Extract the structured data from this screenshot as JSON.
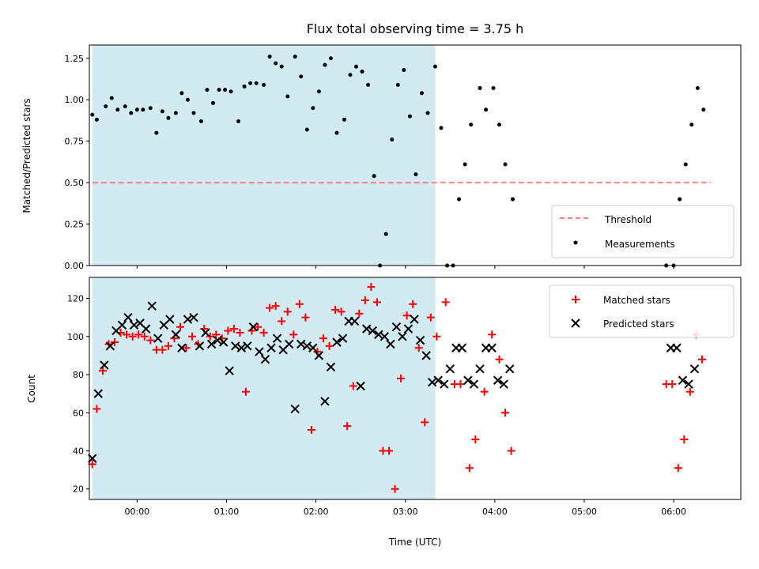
{
  "colors": {
    "shade": "#add8e6",
    "threshold": "#ff7f7f",
    "measurement": "#000000",
    "matched": "#ff0000",
    "predicted": "#000000"
  },
  "chart_data": [
    {
      "type": "scatter",
      "title": "Flux total observing time = 3.75 h",
      "xlabel": "",
      "ylabel": "Matched/Predicted stars",
      "ylim": [
        0,
        1.33
      ],
      "xlim": [
        "-00:32",
        "06:45"
      ],
      "yticks": [
        "0.00",
        "0.25",
        "0.50",
        "0.75",
        "1.00",
        "1.25"
      ],
      "shaded_region": {
        "x_from": "-00:30",
        "x_to": "03:20"
      },
      "legend": {
        "placement": "lower right",
        "entries": [
          "Threshold",
          "Measurements"
        ]
      },
      "series": [
        {
          "name": "Threshold",
          "kind": "dashed-line",
          "x": [
            "-00:30",
            "06:25"
          ],
          "y": [
            0.5,
            0.5
          ]
        },
        {
          "name": "Measurements",
          "kind": "points",
          "x": [
            "-00:30",
            "-00:27",
            "-00:21",
            "-00:17",
            "-00:13",
            "-00:08",
            "-00:04",
            "00:00",
            "00:04",
            "00:09",
            "00:13",
            "00:17",
            "00:21",
            "00:26",
            "00:30",
            "00:34",
            "00:38",
            "00:43",
            "00:47",
            "00:51",
            "00:55",
            "00:59",
            "01:03",
            "01:08",
            "01:12",
            "01:16",
            "01:20",
            "01:25",
            "01:29",
            "01:33",
            "01:37",
            "01:41",
            "01:46",
            "01:50",
            "01:54",
            "01:58",
            "02:02",
            "02:06",
            "02:10",
            "02:14",
            "02:19",
            "02:23",
            "02:27",
            "02:31",
            "02:35",
            "02:39",
            "02:43",
            "02:47",
            "02:51",
            "02:55",
            "02:59",
            "03:03",
            "03:07",
            "03:11",
            "03:15",
            "03:20",
            "03:24",
            "03:28",
            "03:32",
            "03:36",
            "03:40",
            "03:44",
            "03:50",
            "03:54",
            "03:59",
            "04:03",
            "04:07",
            "04:12",
            "05:55",
            "06:00",
            "06:04",
            "06:08",
            "06:12",
            "06:16",
            "06:20"
          ],
          "y": [
            0.91,
            0.88,
            0.96,
            1.01,
            0.94,
            0.96,
            0.92,
            0.94,
            0.94,
            0.95,
            0.8,
            0.93,
            0.89,
            0.92,
            1.04,
            1.0,
            0.92,
            0.87,
            1.06,
            0.98,
            1.06,
            1.06,
            1.05,
            0.87,
            1.08,
            1.1,
            1.1,
            1.09,
            1.26,
            1.22,
            1.2,
            1.02,
            1.26,
            1.14,
            0.82,
            0.95,
            1.05,
            1.21,
            1.25,
            0.8,
            0.88,
            1.15,
            1.2,
            1.17,
            1.09,
            0.54,
            0.0,
            0.19,
            0.76,
            1.09,
            1.18,
            0.9,
            0.55,
            1.04,
            0.92,
            1.2,
            0.83,
            0.0,
            0.0,
            0.4,
            0.61,
            0.85,
            1.07,
            0.94,
            1.07,
            0.85,
            0.61,
            0.4,
            0.0,
            0.0,
            0.4,
            0.61,
            0.85,
            1.07,
            0.94
          ]
        }
      ]
    },
    {
      "type": "scatter",
      "title": "",
      "xlabel": "Time (UTC)",
      "ylabel": "Count",
      "ylim": [
        14.5,
        131
      ],
      "xlim": [
        "-00:32",
        "06:45"
      ],
      "xticks": [
        "00:00",
        "01:00",
        "02:00",
        "03:00",
        "04:00",
        "05:00",
        "06:00"
      ],
      "yticks": [
        "20",
        "40",
        "60",
        "80",
        "100",
        "120"
      ],
      "shaded_region": {
        "x_from": "-00:30",
        "x_to": "03:20"
      },
      "legend": {
        "placement": "top-right",
        "entries": [
          "Matched stars",
          "Predicted stars"
        ]
      },
      "series": [
        {
          "name": "Matched stars",
          "marker": "+",
          "x": [
            "-00:30",
            "-00:27",
            "-00:23",
            "-00:19",
            "-00:15",
            "-00:11",
            "-00:07",
            "-00:03",
            "00:01",
            "00:05",
            "00:09",
            "00:13",
            "00:17",
            "00:21",
            "00:25",
            "00:29",
            "00:33",
            "00:37",
            "00:41",
            "00:45",
            "00:49",
            "00:53",
            "00:57",
            "01:01",
            "01:05",
            "01:09",
            "01:13",
            "01:17",
            "01:21",
            "01:25",
            "01:29",
            "01:33",
            "01:37",
            "01:41",
            "01:45",
            "01:49",
            "01:53",
            "01:57",
            "02:01",
            "02:05",
            "02:09",
            "02:13",
            "02:17",
            "02:21",
            "02:25",
            "02:29",
            "02:33",
            "02:37",
            "02:41",
            "02:45",
            "02:49",
            "02:53",
            "02:57",
            "03:01",
            "03:05",
            "03:09",
            "03:13",
            "03:17",
            "03:21",
            "03:27",
            "03:33",
            "03:37",
            "03:43",
            "03:47",
            "03:53",
            "03:58",
            "04:03",
            "04:07",
            "04:11",
            "05:55",
            "05:59",
            "06:03",
            "06:07",
            "06:11",
            "06:15",
            "06:19"
          ],
          "y": [
            33,
            62,
            82,
            96,
            97,
            102,
            101,
            100,
            101,
            100,
            98,
            93,
            93,
            95,
            99,
            105,
            94,
            100,
            96,
            104,
            100,
            101,
            99,
            103,
            104,
            102,
            71,
            103,
            105,
            102,
            115,
            116,
            108,
            113,
            101,
            117,
            110,
            51,
            92,
            99,
            95,
            114,
            113,
            53,
            74,
            112,
            119,
            126,
            118,
            40,
            40,
            20,
            78,
            111,
            117,
            94,
            55,
            110,
            100,
            118,
            75,
            75,
            31,
            46,
            71,
            101,
            88,
            60,
            40,
            75,
            75,
            31,
            46,
            71,
            101,
            88
          ]
        },
        {
          "name": "Predicted stars",
          "marker": "x",
          "x": [
            "-00:30",
            "-00:26",
            "-00:22",
            "-00:18",
            "-00:14",
            "-00:10",
            "-00:06",
            "-00:02",
            "00:02",
            "00:06",
            "00:10",
            "00:14",
            "00:18",
            "00:22",
            "00:26",
            "00:30",
            "00:34",
            "00:38",
            "00:42",
            "00:46",
            "00:50",
            "00:54",
            "00:58",
            "01:02",
            "01:06",
            "01:10",
            "01:14",
            "01:18",
            "01:22",
            "01:26",
            "01:30",
            "01:34",
            "01:38",
            "01:42",
            "01:46",
            "01:50",
            "01:54",
            "01:58",
            "02:02",
            "02:06",
            "02:10",
            "02:14",
            "02:18",
            "02:22",
            "02:26",
            "02:30",
            "02:34",
            "02:38",
            "02:42",
            "02:46",
            "02:50",
            "02:54",
            "02:58",
            "03:02",
            "03:06",
            "03:10",
            "03:14",
            "03:18",
            "03:22",
            "03:26",
            "03:30",
            "03:34",
            "03:38",
            "03:42",
            "03:46",
            "03:50",
            "03:54",
            "03:58",
            "04:02",
            "04:06",
            "04:10",
            "05:58",
            "06:02",
            "06:06",
            "06:10",
            "06:14"
          ],
          "y": [
            36,
            70,
            85,
            95,
            103,
            106,
            110,
            106,
            107,
            104,
            116,
            99,
            106,
            109,
            101,
            94,
            109,
            110,
            95,
            102,
            96,
            98,
            97,
            82,
            95,
            94,
            95,
            105,
            92,
            88,
            94,
            99,
            93,
            96,
            62,
            96,
            95,
            94,
            90,
            66,
            84,
            97,
            99,
            108,
            108,
            74,
            104,
            103,
            101,
            100,
            96,
            105,
            100,
            104,
            109,
            98,
            90,
            76,
            77,
            75,
            83,
            94,
            94,
            77,
            75,
            83,
            94,
            94,
            77,
            75,
            83,
            94,
            94,
            77,
            75,
            83
          ]
        }
      ]
    }
  ]
}
